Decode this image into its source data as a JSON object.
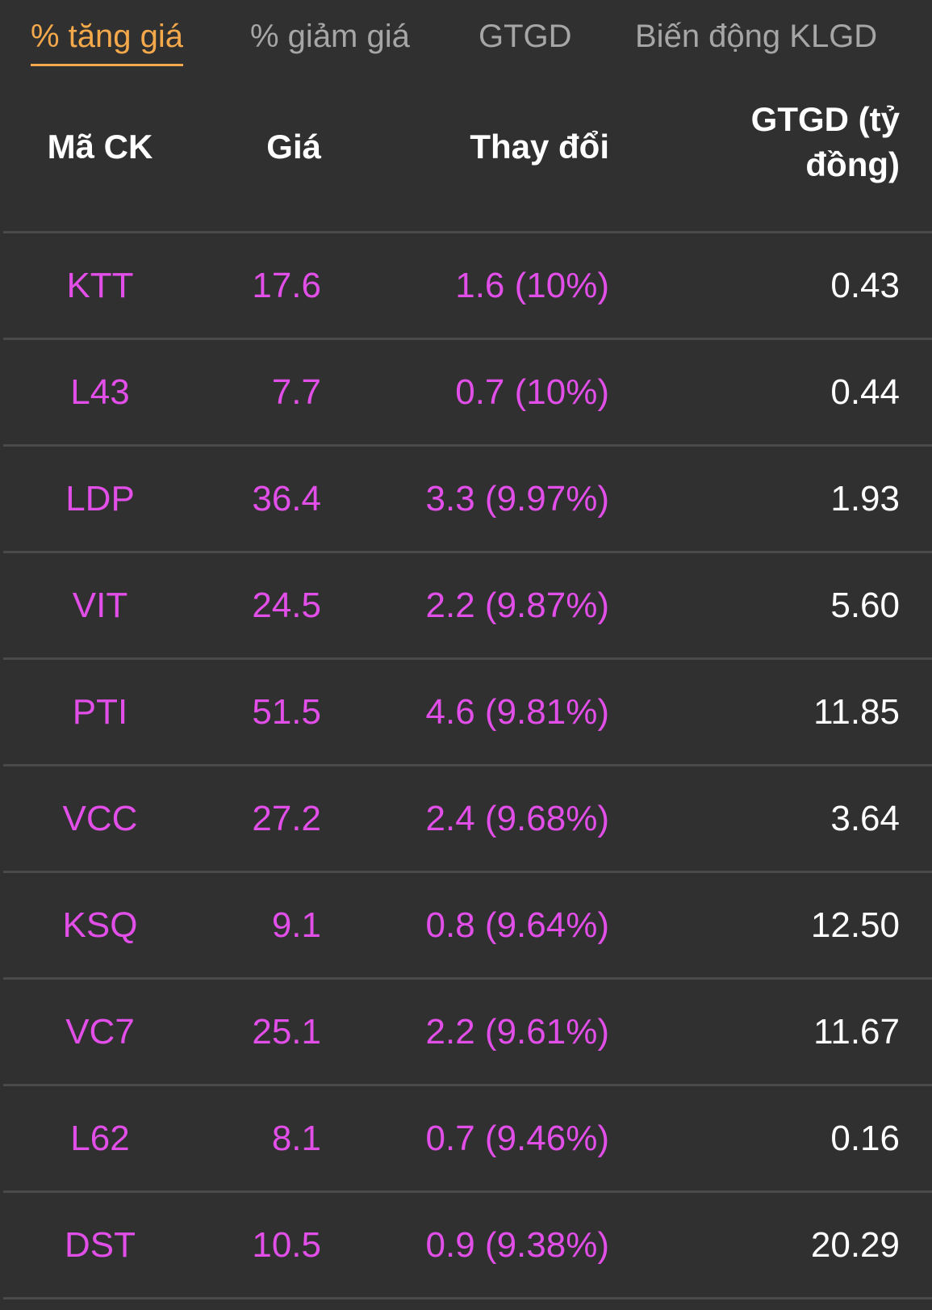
{
  "tabs": [
    {
      "label": "% tăng giá",
      "active": true
    },
    {
      "label": "% giảm giá",
      "active": false
    },
    {
      "label": "GTGD",
      "active": false
    },
    {
      "label": "Biến động KLGD",
      "active": false
    }
  ],
  "table": {
    "headers": {
      "code": "Mã CK",
      "price": "Giá",
      "change": "Thay đổi",
      "value": "GTGD (tỷ đồng)"
    },
    "rows": [
      {
        "code": "KTT",
        "price": "17.6",
        "change": "1.6 (10%)",
        "value": "0.43"
      },
      {
        "code": "L43",
        "price": "7.7",
        "change": "0.7 (10%)",
        "value": "0.44"
      },
      {
        "code": "LDP",
        "price": "36.4",
        "change": "3.3 (9.97%)",
        "value": "1.93"
      },
      {
        "code": "VIT",
        "price": "24.5",
        "change": "2.2 (9.87%)",
        "value": "5.60"
      },
      {
        "code": "PTI",
        "price": "51.5",
        "change": "4.6 (9.81%)",
        "value": "11.85"
      },
      {
        "code": "VCC",
        "price": "27.2",
        "change": "2.4 (9.68%)",
        "value": "3.64"
      },
      {
        "code": "KSQ",
        "price": "9.1",
        "change": "0.8 (9.64%)",
        "value": "12.50"
      },
      {
        "code": "VC7",
        "price": "25.1",
        "change": "2.2 (9.61%)",
        "value": "11.67"
      },
      {
        "code": "L62",
        "price": "8.1",
        "change": "0.7 (9.46%)",
        "value": "0.16"
      },
      {
        "code": "DST",
        "price": "10.5",
        "change": "0.9 (9.38%)",
        "value": "20.29"
      }
    ]
  },
  "colors": {
    "background": "#303030",
    "active_tab": "#f5a94b",
    "inactive_tab": "#a6a6a6",
    "ceiling_price": "#e24ee8",
    "value_text": "#ffffff",
    "divider": "#4a4a4a"
  }
}
